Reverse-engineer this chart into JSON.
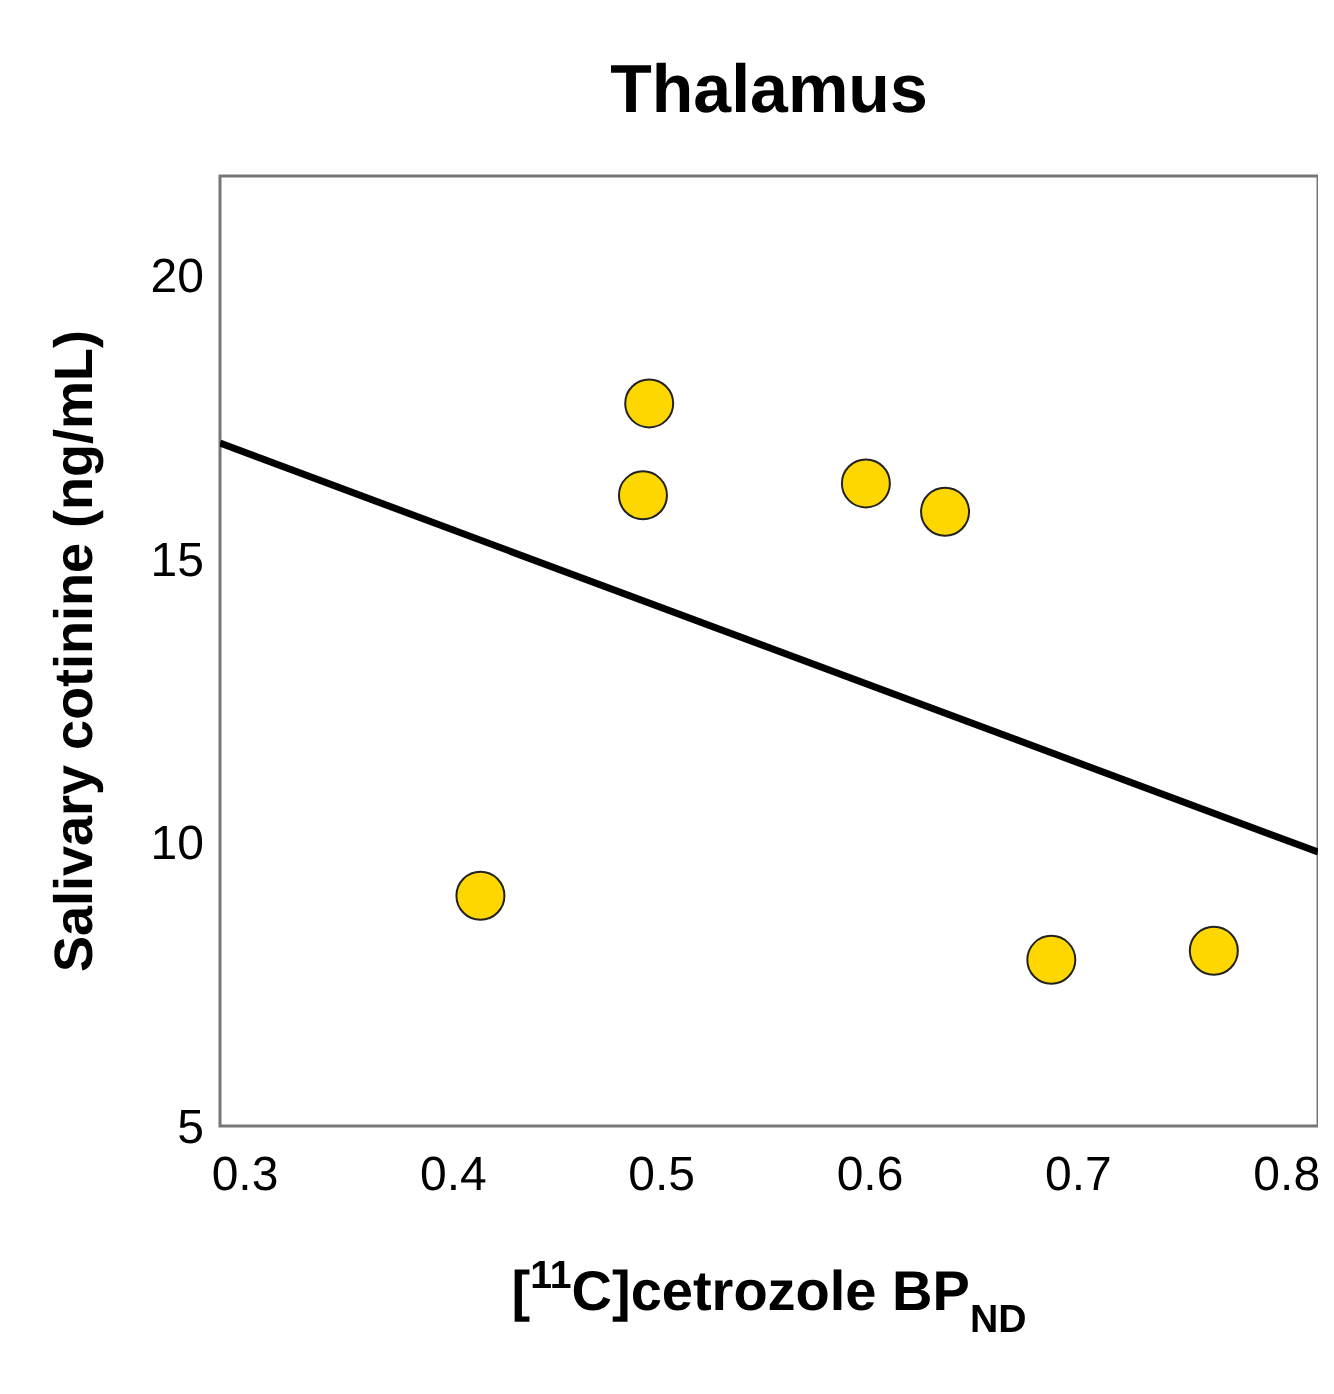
{
  "chart_data": {
    "type": "scatter",
    "title": "Thalamus",
    "xlabel": "[$^{11}$C]cetrozole BP$_{ND}$",
    "ylabel": "Salivary cotinine (ng/mL)",
    "xlim": [
      0.288,
      0.815
    ],
    "xticks": [
      0.3,
      0.4,
      0.5,
      0.6,
      0.7,
      0.8
    ],
    "ylim": [
      5,
      21.75
    ],
    "yticks": [
      5,
      10,
      15,
      20
    ],
    "grid": false,
    "series": [
      {
        "color": "#ffd700",
        "marker": "circle",
        "x": [
          0.413,
          0.494,
          0.491,
          0.598,
          0.636,
          0.687,
          0.765
        ],
        "values": [
          9.06,
          17.74,
          16.12,
          16.33,
          15.83,
          7.93,
          8.09
        ]
      },
      {
        "type": "line",
        "color": "#000000",
        "x": [
          0.288,
          0.815
        ],
        "values": [
          17.04,
          9.83
        ],
        "marker": "none",
        "line_style": "solid"
      }
    ]
  }
}
